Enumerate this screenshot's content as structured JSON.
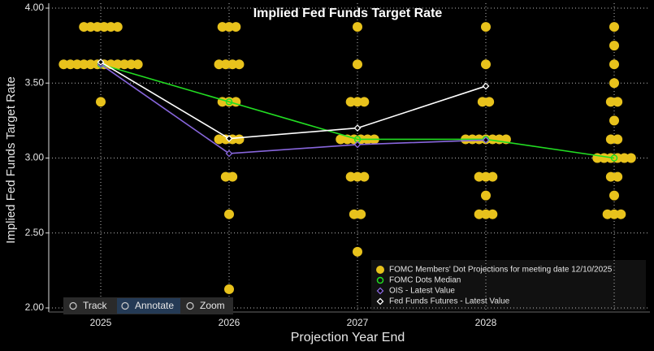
{
  "chart_data": {
    "type": "dot_plot",
    "title": "Implied Fed Funds Target Rate",
    "y_label": "Implied Fed Funds Target Rate",
    "x_label": "Projection Year End",
    "categories": [
      "2025",
      "2026",
      "2027",
      "2028",
      null
    ],
    "ylim": [
      2,
      4
    ],
    "yticks": [
      {
        "value": 2,
        "label": "2.00"
      },
      {
        "value": 2.5,
        "label": "2.50"
      },
      {
        "value": 3,
        "label": "3.00"
      },
      {
        "value": 3.5,
        "label": "3.50"
      },
      {
        "value": 4,
        "label": "4.00"
      }
    ],
    "grid": true,
    "dots": {
      "name": "FOMC Members' Dot Projections for meeting date 12/10/2025",
      "color": "#e8c21c",
      "levels": [
        [
          3.875,
          3.625,
          3.375
        ],
        [
          3.875,
          3.625,
          3.375,
          3.125,
          2.875,
          2.625,
          2.125
        ],
        [
          3.875,
          3.625,
          3.375,
          3.125,
          2.875,
          2.625,
          2.375
        ],
        [
          3.875,
          3.625,
          3.375,
          3.125,
          2.875,
          2.75,
          2.625
        ],
        [
          3.875,
          3.75,
          3.625,
          3.5,
          3.375,
          3.25,
          3.125,
          3,
          2.875,
          2.75,
          2.625
        ]
      ],
      "counts": [
        [
          6,
          12,
          1
        ],
        [
          3,
          4,
          3,
          4,
          2,
          1,
          1
        ],
        [
          1,
          1,
          3,
          6,
          3,
          2,
          1
        ],
        [
          1,
          1,
          2,
          7,
          3,
          1,
          3
        ],
        [
          1,
          1,
          1,
          1,
          2,
          1,
          2,
          6,
          2,
          1,
          3
        ]
      ]
    },
    "series": [
      {
        "name": "FOMC Dots Median",
        "color": "#22dd22",
        "marker": "circle",
        "values": [
          3.625,
          3.375,
          3.125,
          3.125,
          3
        ]
      },
      {
        "name": "OIS - Latest Value",
        "color": "#8866dd",
        "marker": "diamond",
        "values": [
          3.625,
          3.03,
          3.09,
          3.12,
          null
        ]
      },
      {
        "name": "Fed Funds Futures - Latest Value",
        "color": "#ffffff",
        "marker": "diamond",
        "values": [
          3.64,
          3.13,
          3.2,
          3.48,
          null
        ]
      }
    ],
    "toolbar": [
      "Track",
      "Annotate",
      "Zoom"
    ]
  }
}
